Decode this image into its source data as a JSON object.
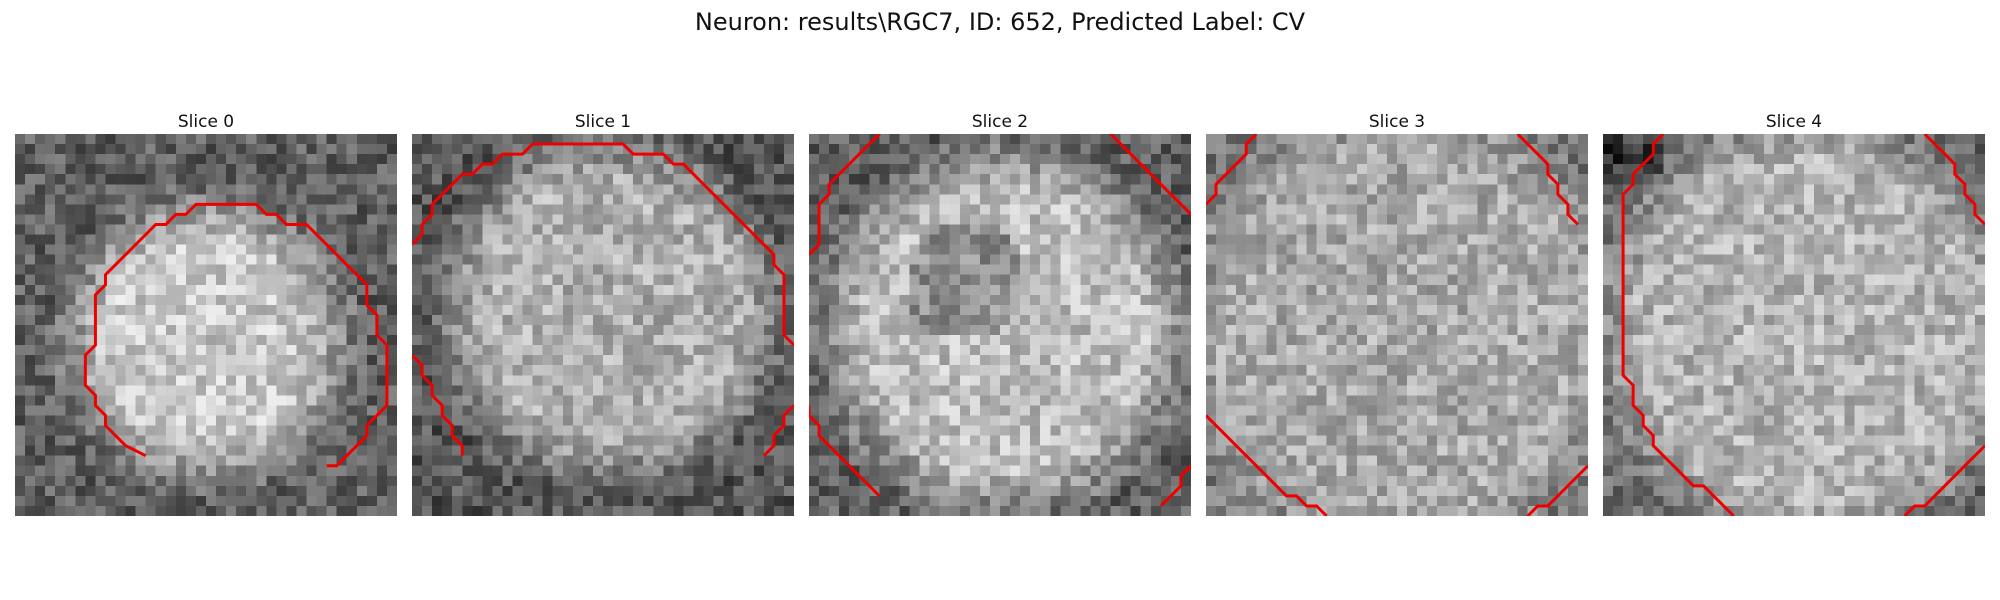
{
  "figure": {
    "title": "Neuron: results\\RGC7, ID: 652, Predicted Label: CV"
  },
  "panels": [
    {
      "title": "Slice 0",
      "contours": [
        [
          [
            13,
            32
          ],
          [
            11,
            31
          ],
          [
            10,
            30
          ],
          [
            9,
            29
          ],
          [
            9,
            28
          ],
          [
            8,
            27
          ],
          [
            8,
            26
          ],
          [
            7,
            25
          ],
          [
            7,
            24
          ],
          [
            7,
            23
          ],
          [
            7,
            22
          ],
          [
            8,
            21
          ],
          [
            8,
            20
          ],
          [
            8,
            19
          ],
          [
            8,
            18
          ],
          [
            8,
            17
          ],
          [
            8,
            16
          ],
          [
            9,
            15
          ],
          [
            9,
            14
          ],
          [
            10,
            13
          ],
          [
            11,
            12
          ],
          [
            12,
            11
          ],
          [
            13,
            10
          ],
          [
            14,
            9
          ],
          [
            15,
            9
          ],
          [
            16,
            8
          ],
          [
            17,
            8
          ],
          [
            18,
            7
          ],
          [
            19,
            7
          ],
          [
            20,
            7
          ],
          [
            21,
            7
          ],
          [
            22,
            7
          ],
          [
            23,
            7
          ],
          [
            24,
            7
          ],
          [
            25,
            8
          ],
          [
            26,
            8
          ],
          [
            27,
            9
          ],
          [
            28,
            9
          ],
          [
            29,
            9
          ],
          [
            30,
            10
          ],
          [
            31,
            11
          ],
          [
            32,
            12
          ],
          [
            33,
            13
          ],
          [
            34,
            14
          ],
          [
            35,
            15
          ],
          [
            35,
            16
          ],
          [
            35,
            17
          ],
          [
            36,
            18
          ],
          [
            36,
            19
          ],
          [
            36,
            20
          ],
          [
            37,
            21
          ],
          [
            37,
            22
          ],
          [
            37,
            23
          ],
          [
            37,
            24
          ],
          [
            37,
            25
          ],
          [
            37,
            26
          ],
          [
            37,
            27
          ],
          [
            36,
            28
          ],
          [
            35,
            29
          ],
          [
            35,
            30
          ],
          [
            34,
            31
          ],
          [
            33,
            32
          ],
          [
            32,
            33
          ],
          [
            31,
            33
          ]
        ]
      ]
    },
    {
      "title": "Slice 1",
      "contours": [
        [
          [
            0,
            11
          ],
          [
            1,
            10
          ],
          [
            1,
            9
          ],
          [
            2,
            8
          ],
          [
            2,
            7
          ],
          [
            3,
            6
          ],
          [
            4,
            5
          ],
          [
            5,
            4
          ],
          [
            6,
            4
          ],
          [
            7,
            3
          ],
          [
            8,
            3
          ],
          [
            9,
            2
          ],
          [
            10,
            2
          ],
          [
            11,
            2
          ],
          [
            12,
            1
          ],
          [
            13,
            1
          ],
          [
            14,
            1
          ],
          [
            15,
            1
          ],
          [
            16,
            1
          ],
          [
            17,
            1
          ],
          [
            18,
            1
          ],
          [
            19,
            1
          ],
          [
            20,
            1
          ],
          [
            21,
            1
          ],
          [
            22,
            2
          ],
          [
            23,
            2
          ],
          [
            24,
            2
          ],
          [
            25,
            2
          ],
          [
            26,
            3
          ],
          [
            27,
            3
          ],
          [
            28,
            4
          ],
          [
            29,
            5
          ],
          [
            30,
            6
          ],
          [
            31,
            7
          ],
          [
            32,
            8
          ],
          [
            33,
            9
          ],
          [
            34,
            10
          ],
          [
            35,
            11
          ],
          [
            36,
            12
          ],
          [
            36,
            13
          ],
          [
            37,
            14
          ],
          [
            37,
            15
          ],
          [
            37,
            16
          ],
          [
            37,
            17
          ],
          [
            37,
            18
          ],
          [
            37,
            19
          ],
          [
            37,
            20
          ],
          [
            38,
            21
          ]
        ],
        [
          [
            0,
            22
          ],
          [
            1,
            23
          ],
          [
            1,
            24
          ],
          [
            2,
            25
          ],
          [
            2,
            26
          ],
          [
            3,
            27
          ],
          [
            3,
            28
          ],
          [
            4,
            29
          ],
          [
            4,
            30
          ],
          [
            5,
            31
          ],
          [
            5,
            32
          ]
        ],
        [
          [
            38,
            27
          ],
          [
            37,
            28
          ],
          [
            37,
            29
          ],
          [
            36,
            30
          ],
          [
            36,
            31
          ],
          [
            35,
            32
          ]
        ]
      ]
    },
    {
      "title": "Slice 2",
      "contours": [
        [
          [
            0,
            12
          ],
          [
            1,
            11
          ],
          [
            1,
            10
          ],
          [
            1,
            9
          ],
          [
            1,
            8
          ],
          [
            1,
            7
          ],
          [
            2,
            6
          ],
          [
            2,
            5
          ],
          [
            3,
            4
          ],
          [
            4,
            3
          ],
          [
            5,
            2
          ],
          [
            6,
            1
          ],
          [
            7,
            0
          ],
          [
            7,
            -1
          ]
        ],
        [
          [
            30,
            0
          ],
          [
            31,
            1
          ],
          [
            32,
            2
          ],
          [
            33,
            3
          ],
          [
            34,
            4
          ],
          [
            35,
            5
          ],
          [
            36,
            6
          ],
          [
            37,
            7
          ],
          [
            38,
            8
          ]
        ],
        [
          [
            0,
            27
          ],
          [
            0,
            28
          ],
          [
            1,
            29
          ],
          [
            1,
            30
          ],
          [
            2,
            31
          ],
          [
            3,
            32
          ],
          [
            4,
            33
          ],
          [
            5,
            34
          ],
          [
            6,
            35
          ],
          [
            7,
            36
          ]
        ],
        [
          [
            38,
            33
          ],
          [
            37,
            34
          ],
          [
            37,
            35
          ],
          [
            36,
            36
          ],
          [
            35,
            37
          ]
        ]
      ]
    },
    {
      "title": "Slice 3",
      "contours": [
        [
          [
            0,
            7
          ],
          [
            1,
            6
          ],
          [
            1,
            5
          ],
          [
            2,
            4
          ],
          [
            3,
            3
          ],
          [
            4,
            2
          ],
          [
            4,
            1
          ],
          [
            5,
            0
          ]
        ],
        [
          [
            31,
            0
          ],
          [
            32,
            1
          ],
          [
            33,
            2
          ],
          [
            34,
            3
          ],
          [
            34,
            4
          ],
          [
            35,
            5
          ],
          [
            35,
            6
          ],
          [
            36,
            7
          ],
          [
            36,
            8
          ],
          [
            37,
            9
          ]
        ],
        [
          [
            0,
            28
          ],
          [
            1,
            29
          ],
          [
            2,
            30
          ],
          [
            3,
            31
          ],
          [
            4,
            32
          ],
          [
            5,
            33
          ],
          [
            6,
            34
          ],
          [
            7,
            35
          ],
          [
            8,
            36
          ],
          [
            9,
            36
          ],
          [
            10,
            37
          ],
          [
            11,
            37
          ],
          [
            12,
            38
          ]
        ],
        [
          [
            38,
            33
          ],
          [
            37,
            34
          ],
          [
            36,
            35
          ],
          [
            35,
            36
          ],
          [
            34,
            37
          ],
          [
            33,
            37
          ],
          [
            32,
            38
          ]
        ]
      ]
    },
    {
      "title": "Slice 4",
      "contours": [
        [
          [
            6,
            0
          ],
          [
            5,
            1
          ],
          [
            5,
            2
          ],
          [
            4,
            3
          ],
          [
            3,
            4
          ],
          [
            3,
            5
          ],
          [
            2,
            6
          ],
          [
            2,
            7
          ],
          [
            2,
            8
          ],
          [
            2,
            9
          ],
          [
            2,
            10
          ],
          [
            2,
            11
          ],
          [
            2,
            12
          ],
          [
            2,
            13
          ],
          [
            2,
            14
          ],
          [
            2,
            15
          ],
          [
            2,
            16
          ],
          [
            2,
            17
          ],
          [
            2,
            18
          ],
          [
            2,
            19
          ],
          [
            2,
            20
          ],
          [
            2,
            21
          ],
          [
            2,
            22
          ],
          [
            2,
            23
          ],
          [
            2,
            24
          ],
          [
            3,
            25
          ],
          [
            3,
            26
          ],
          [
            3,
            27
          ],
          [
            4,
            28
          ],
          [
            4,
            29
          ],
          [
            5,
            30
          ],
          [
            5,
            31
          ],
          [
            6,
            32
          ],
          [
            7,
            33
          ],
          [
            8,
            34
          ],
          [
            9,
            35
          ],
          [
            10,
            35
          ],
          [
            11,
            36
          ],
          [
            12,
            37
          ],
          [
            13,
            38
          ]
        ],
        [
          [
            32,
            0
          ],
          [
            33,
            1
          ],
          [
            34,
            2
          ],
          [
            35,
            3
          ],
          [
            35,
            4
          ],
          [
            36,
            5
          ],
          [
            36,
            6
          ],
          [
            37,
            7
          ],
          [
            37,
            8
          ],
          [
            38,
            9
          ]
        ],
        [
          [
            38,
            31
          ],
          [
            37,
            32
          ],
          [
            36,
            33
          ],
          [
            35,
            34
          ],
          [
            34,
            35
          ],
          [
            33,
            36
          ],
          [
            32,
            37
          ],
          [
            31,
            37
          ],
          [
            30,
            38
          ]
        ]
      ]
    }
  ]
}
